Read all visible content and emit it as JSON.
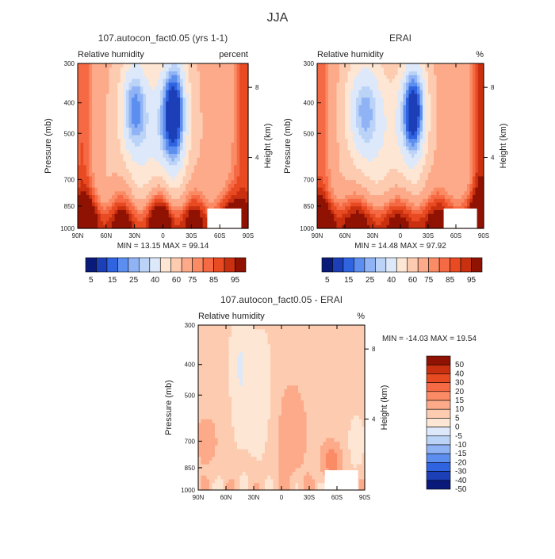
{
  "figure": {
    "season": "JJA"
  },
  "colorbar_ticks": [
    "5",
    "15",
    "25",
    "40",
    "60",
    "75",
    "85",
    "95"
  ],
  "diff_colorbar_ticks": [
    "50",
    "40",
    "30",
    "20",
    "15",
    "10",
    "5",
    "0",
    "-5",
    "-10",
    "-15",
    "-20",
    "-30",
    "-40",
    "-50"
  ],
  "palettes": {
    "rh": [
      "#0a1a7a",
      "#1c3fb8",
      "#2f63e0",
      "#5c8ef0",
      "#8fb3f5",
      "#bcd3f8",
      "#dde9fa",
      "#fde6d3",
      "#fdcbb0",
      "#fcaa8a",
      "#fa8b65",
      "#f56a44",
      "#e84a22",
      "#c9300f",
      "#8f1203"
    ],
    "diff": [
      "#0a1a7a",
      "#1c3fb8",
      "#2f63e0",
      "#5c8ef0",
      "#8fb3f5",
      "#bcd3f8",
      "#dde9fa",
      "#fde6d3",
      "#fdcbb0",
      "#fcaa8a",
      "#fa8b65",
      "#f56a44",
      "#e84a22",
      "#c9300f",
      "#8f1203"
    ]
  },
  "chart_data": [
    {
      "type": "heatmap",
      "title": "107.autocon_fact0.05 (yrs 1-1)",
      "subtitle_left": "Relative humidity",
      "subtitle_right": "percent",
      "xlabel": "",
      "ylabel": "Pressure (mb)",
      "ylabel_right": "Height (km)",
      "x_ticks": [
        "90N",
        "60N",
        "30N",
        "0",
        "30S",
        "60S",
        "90S"
      ],
      "y_ticks": [
        "300",
        "400",
        "500",
        "700",
        "850",
        "1000"
      ],
      "y_right_ticks": [
        "8",
        "4"
      ],
      "stats": {
        "min_label": "MIN =",
        "min": "13.15",
        "max_label": "MAX =",
        "max": "99.14"
      },
      "colorbar": "horizontal",
      "levels": [
        5,
        10,
        15,
        20,
        25,
        30,
        40,
        50,
        60,
        70,
        75,
        80,
        85,
        90,
        95
      ],
      "field_kind": "model"
    },
    {
      "type": "heatmap",
      "title": "ERAI",
      "subtitle_left": "Relative humidity",
      "subtitle_right": "%",
      "xlabel": "",
      "ylabel": "Pressure (mb)",
      "ylabel_right": "Height (km)",
      "x_ticks": [
        "90N",
        "60N",
        "30N",
        "0",
        "30S",
        "60S",
        "90S"
      ],
      "y_ticks": [
        "300",
        "400",
        "500",
        "700",
        "850",
        "1000"
      ],
      "y_right_ticks": [
        "8",
        "4"
      ],
      "stats": {
        "min_label": "MIN =",
        "min": "14.48",
        "max_label": "MAX =",
        "max": "97.92"
      },
      "colorbar": "horizontal",
      "levels": [
        5,
        10,
        15,
        20,
        25,
        30,
        40,
        50,
        60,
        70,
        75,
        80,
        85,
        90,
        95
      ],
      "field_kind": "obs"
    },
    {
      "type": "heatmap",
      "title": "107.autocon_fact0.05 - ERAI",
      "subtitle_left": "Relative humidity",
      "subtitle_right": "%",
      "xlabel": "",
      "ylabel": "Pressure (mb)",
      "ylabel_right": "Height (km)",
      "x_ticks": [
        "90N",
        "60N",
        "30N",
        "0",
        "30S",
        "60S",
        "90S"
      ],
      "y_ticks": [
        "300",
        "400",
        "500",
        "700",
        "850",
        "1000"
      ],
      "y_right_ticks": [
        "8",
        "4"
      ],
      "stats": {
        "min_label": "MIN =",
        "min": "-14.03",
        "max_label": "MAX =",
        "max": "19.54"
      },
      "colorbar": "vertical",
      "levels": [
        -50,
        -40,
        -30,
        -20,
        -15,
        -10,
        -5,
        0,
        5,
        10,
        15,
        20,
        30,
        40,
        50
      ],
      "field_kind": "diff"
    }
  ]
}
